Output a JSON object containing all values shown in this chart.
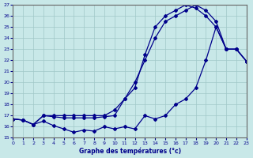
{
  "bg_color": "#c8e8e8",
  "grid_color": "#a0c8c8",
  "line_color": "#00008b",
  "hours": [
    0,
    1,
    2,
    3,
    4,
    5,
    6,
    7,
    8,
    9,
    10,
    11,
    12,
    13,
    14,
    15,
    16,
    17,
    18,
    19,
    20,
    21,
    22,
    23
  ],
  "line1": [
    16.7,
    16.6,
    16.2,
    17.0,
    16.9,
    16.8,
    16.8,
    16.8,
    16.8,
    16.9,
    17.0,
    18.5,
    19.5,
    22.5,
    25.0,
    26.0,
    26.5,
    27.0,
    26.7,
    26.0,
    25.0,
    23.0,
    23.0,
    21.9
  ],
  "line2": [
    16.7,
    16.6,
    16.2,
    16.5,
    16.1,
    15.8,
    15.5,
    15.7,
    15.6,
    16.0,
    15.8,
    16.0,
    15.8,
    17.0,
    16.7,
    17.0,
    18.0,
    18.5,
    19.5,
    22.0,
    25.0,
    23.0,
    23.0,
    21.9
  ],
  "line3": [
    16.7,
    16.6,
    16.2,
    17.0,
    17.0,
    17.0,
    17.0,
    17.0,
    17.0,
    17.0,
    17.5,
    18.5,
    20.0,
    22.0,
    24.0,
    25.5,
    26.0,
    26.5,
    27.0,
    26.5,
    25.5,
    23.0,
    23.0,
    21.9
  ],
  "xlabel": "Graphe des températures (°c)",
  "ylim_min": 15,
  "ylim_max": 27
}
